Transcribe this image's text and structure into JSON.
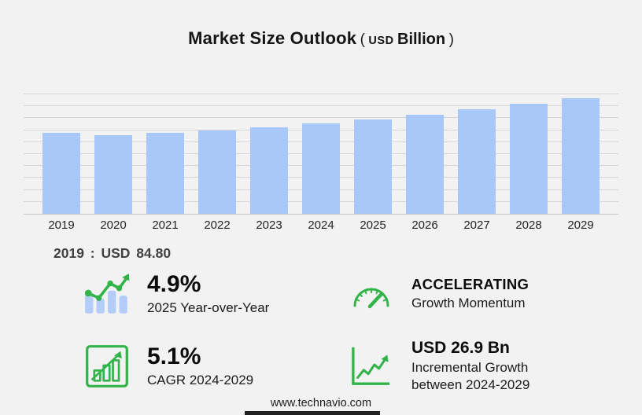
{
  "header": {
    "title": "Market Size Outlook",
    "paren_open": "(",
    "unit_currency": "USD",
    "unit_word": "Billion",
    "paren_close": ")"
  },
  "chart_data": {
    "type": "bar",
    "title": "Market Size Outlook (USD Billion)",
    "categories": [
      "2019",
      "2020",
      "2021",
      "2022",
      "2023",
      "2024",
      "2025",
      "2026",
      "2027",
      "2028",
      "2029"
    ],
    "values": [
      84.8,
      82.6,
      85.0,
      87.3,
      90.8,
      94.3,
      98.9,
      103.6,
      109.1,
      114.8,
      121.2
    ],
    "ylim": [
      0,
      125
    ],
    "grid": true,
    "gridline_count": 10,
    "bar_color": "#a9c8fa",
    "annotation": "2019 : USD 84.80"
  },
  "chart_note": "2019 : USD  84.80",
  "stats": [
    {
      "value": "4.9%",
      "label": "2025 Year-over-Year",
      "icon": "bar-trend-icon"
    },
    {
      "value": "ACCELERATING",
      "label": "Growth Momentum",
      "icon": "gauge-icon"
    },
    {
      "value": "5.1%",
      "label": "CAGR 2024-2029",
      "icon": "growth-chart-icon"
    },
    {
      "value": "USD 26.9 Bn",
      "label": "Incremental Growth between 2024-2029",
      "icon": "trend-up-icon"
    }
  ],
  "footer": {
    "url": "www.technavio.com"
  },
  "colors": {
    "background": "#f2f2f3",
    "bar": "#a9c8fa",
    "gridline": "#d7d7d9",
    "axis": "#c7c7ca",
    "accent_green": "#33b44a",
    "icon_bar_blue": "#b4cdf8"
  }
}
